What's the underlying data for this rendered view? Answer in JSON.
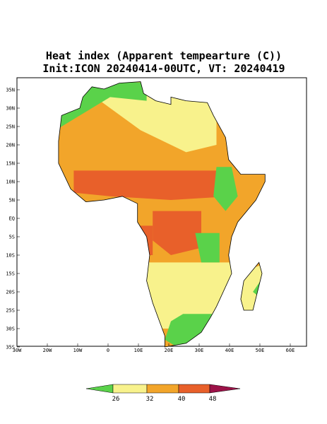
{
  "header": {
    "title_lines": [
      "Heat index (Apparent tempearture (C))",
      "Init:ICON 20240414-00UTC, VT: 20240419"
    ]
  },
  "map": {
    "lat_labels": [
      "35N",
      "30N",
      "25N",
      "20N",
      "15N",
      "10N",
      "5N",
      "EQ",
      "5S",
      "10S",
      "15S",
      "20S",
      "25S",
      "30S",
      "35S"
    ],
    "lon_labels": [
      "30W",
      "20W",
      "10W",
      "0",
      "10E",
      "20E",
      "30E",
      "40E",
      "50E",
      "60E"
    ]
  },
  "colorbar": {
    "labels": [
      26,
      32,
      40,
      48
    ]
  }
}
